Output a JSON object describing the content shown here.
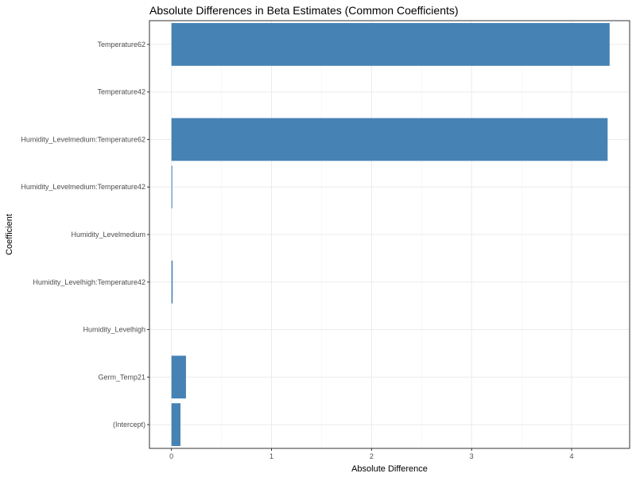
{
  "chart_data": {
    "type": "bar",
    "orientation": "horizontal",
    "title": "Absolute Differences in Beta Estimates (Common Coefficients)",
    "xlabel": "Absolute Difference",
    "ylabel": "Coefficient",
    "categories": [
      "(Intercept)",
      "Germ_Temp21",
      "Humidity_Levelhigh",
      "Humidity_Levelhigh:Temperature42",
      "Humidity_Levelmedium",
      "Humidity_Levelmedium:Temperature42",
      "Humidity_Levelmedium:Temperature62",
      "Temperature42",
      "Temperature62"
    ],
    "values": [
      0.09,
      0.145,
      0.0,
      0.012,
      0.0,
      0.008,
      4.36,
      0.0,
      4.38
    ],
    "xlim": [
      -0.22,
      4.58
    ],
    "xticks": [
      0,
      1,
      2,
      3,
      4
    ],
    "grid": true,
    "bar_color": "#4682B4"
  }
}
